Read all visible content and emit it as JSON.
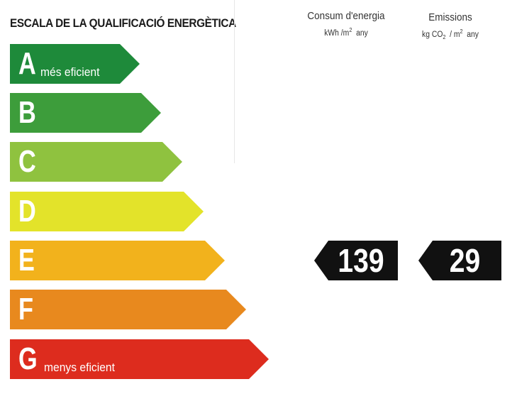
{
  "title": "ESCALA DE LA QUALIFICACIÓ ENERGÈTICA",
  "ratings": [
    {
      "letter": "A",
      "label": "més eficient",
      "color": "#1e8a3a"
    },
    {
      "letter": "B",
      "label": "",
      "color": "#3d9d3b"
    },
    {
      "letter": "C",
      "label": "",
      "color": "#8fc23f"
    },
    {
      "letter": "D",
      "label": "",
      "color": "#e3e32a"
    },
    {
      "letter": "E",
      "label": "",
      "color": "#f2b21c"
    },
    {
      "letter": "F",
      "label": "",
      "color": "#e8891e"
    },
    {
      "letter": "G",
      "label": "menys eficient",
      "color": "#dd2c1e"
    }
  ],
  "columns": {
    "energy": {
      "title": "Consum d'energia",
      "unit_prefix": "kWh /m",
      "unit_sup": "2",
      "unit_suffix": "  any",
      "value": "139",
      "rating": "E"
    },
    "emissions": {
      "title": "Emissions",
      "unit_prefix": "kg CO",
      "unit_sub": "2",
      "unit_mid": "  / m",
      "unit_sup": "2",
      "unit_suffix": "  any",
      "value": "29",
      "rating": "E"
    }
  },
  "marker_color": "#111111"
}
